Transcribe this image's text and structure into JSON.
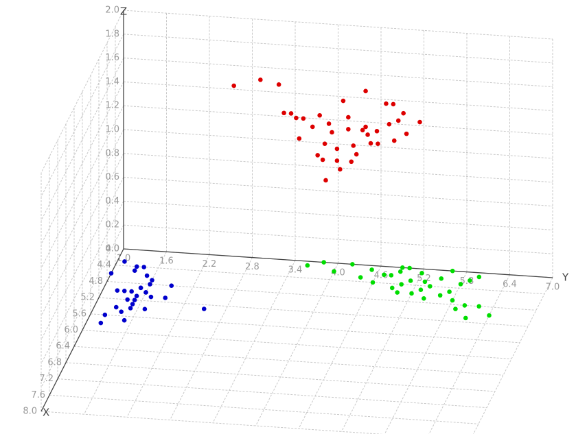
{
  "chart_data": {
    "type": "scatter3d",
    "x_label": "X",
    "y_label": "Y",
    "z_label": "Z",
    "xlim": [
      4.0,
      8.0
    ],
    "ylim": [
      1.0,
      7.0
    ],
    "zlim": [
      0.0,
      2.0
    ],
    "xticks": [
      {
        "value": 4.0,
        "label": "4.0"
      },
      4.4,
      4.8,
      5.2,
      5.6,
      {
        "value": 6.0,
        "label": "6.0"
      },
      6.4,
      6.8,
      7.2,
      7.6,
      {
        "value": 8.0,
        "label": "8.0"
      }
    ],
    "yticks": [
      {
        "value": 1.0,
        "label": "1.0"
      },
      1.6,
      2.2,
      2.8,
      3.4,
      {
        "value": 4.0,
        "label": "4.0"
      },
      4.6,
      5.2,
      5.8,
      6.4,
      {
        "value": 7.0,
        "label": "7.0"
      }
    ],
    "zticks": [
      {
        "value": 0.0,
        "label": "0.0"
      },
      0.2,
      0.4,
      0.6,
      0.8,
      {
        "value": 1.0,
        "label": "1.0"
      },
      1.2,
      1.4,
      1.6,
      1.8,
      {
        "value": 2.0,
        "label": "2.0"
      }
    ],
    "grid": true,
    "series": [
      {
        "color": "#0000cc",
        "x": [
          4.3,
          4.4,
          4.6,
          4.7,
          4.8,
          4.8,
          4.9,
          5.0,
          5.0,
          5.0,
          5.1,
          5.1,
          5.2,
          5.2,
          5.3,
          5.4,
          5.4,
          5.5,
          5.6,
          5.7,
          5.8,
          4.5,
          4.9,
          5.0,
          5.1,
          4.6,
          5.4,
          5.0,
          4.4,
          5.3
        ],
        "y": [
          1.1,
          1.4,
          1.0,
          1.6,
          1.9,
          1.6,
          1.5,
          1.3,
          1.6,
          1.4,
          1.5,
          1.7,
          1.4,
          1.5,
          1.5,
          1.7,
          1.3,
          1.4,
          1.2,
          1.5,
          1.2,
          1.3,
          1.5,
          1.2,
          1.9,
          1.5,
          1.5,
          1.6,
          1.3,
          2.5
        ],
        "z": [
          0,
          0,
          0,
          0,
          0,
          0,
          0,
          0,
          0,
          0,
          0,
          0,
          0,
          0,
          0,
          0,
          0,
          0,
          0,
          0,
          0,
          0,
          0,
          0,
          0,
          0,
          0,
          0,
          0,
          0
        ]
      },
      {
        "color": "#dd0000",
        "x": [
          4.2,
          4.3,
          4.1,
          4.4,
          4.2,
          4.3,
          4.5,
          4.2,
          4.1,
          4.3,
          4.4,
          4.2,
          4.6,
          4.3,
          4.2,
          4.4,
          4.5,
          4.1,
          4.3,
          4.2,
          4.4,
          4.3,
          4.5,
          4.2,
          4.6,
          4.3,
          4.4,
          4.2,
          4.1,
          4.5,
          4.3,
          4.2,
          4.4,
          4.3,
          4.2,
          4.5,
          4.1,
          4.3,
          4.4,
          4.2
        ],
        "y": [
          2.6,
          3.0,
          3.2,
          4.5,
          3.3,
          3.5,
          3.6,
          3.8,
          3.9,
          4.0,
          4.1,
          4.2,
          4.2,
          4.3,
          4.4,
          4.5,
          4.6,
          4.7,
          4.8,
          4.9,
          4.9,
          5.0,
          5.1,
          3.7,
          4.0,
          3.9,
          4.3,
          4.6,
          4.8,
          4.4,
          3.6,
          3.4,
          4.1,
          4.5,
          5.2,
          4.7,
          4.1,
          3.8,
          3.9,
          4.2
        ],
        "z": [
          1.5,
          1.6,
          1.5,
          1.6,
          1.3,
          1.3,
          1.2,
          1.3,
          1.2,
          1.2,
          1.1,
          1.3,
          1.0,
          1.1,
          1.2,
          1.3,
          1.2,
          1.4,
          1.3,
          1.3,
          1.2,
          1.4,
          1.3,
          1.2,
          0.9,
          1.1,
          1.0,
          1.2,
          1.4,
          1.1,
          1.3,
          1.3,
          1.0,
          1.2,
          1.3,
          1.2,
          1.4,
          1.0,
          1.0,
          1.2
        ]
      },
      {
        "color": "#00dd00",
        "x": [
          4.0,
          4.0,
          4.1,
          4.0,
          4.2,
          4.3,
          4.1,
          4.2,
          4.4,
          4.0,
          4.3,
          4.5,
          4.2,
          4.1,
          4.4,
          4.6,
          4.3,
          4.5,
          4.7,
          4.8,
          4.9,
          5.0,
          4.6,
          4.2,
          4.4,
          4.0,
          4.1,
          4.3,
          4.5,
          4.7,
          4.2,
          4.1,
          4.6,
          4.8,
          5.1
        ],
        "y": [
          3.8,
          4.2,
          4.5,
          5.0,
          4.8,
          4.4,
          5.2,
          5.5,
          5.0,
          5.6,
          5.8,
          5.3,
          4.0,
          3.6,
          4.6,
          5.6,
          5.1,
          4.9,
          5.4,
          6.2,
          5.9,
          6.4,
          5.0,
          4.7,
          5.4,
          4.9,
          4.9,
          5.3,
          5.7,
          5.8,
          5.9,
          6.0,
          5.2,
          6.0,
          6.1
        ],
        "z": [
          0,
          0,
          0,
          0,
          0,
          0,
          0,
          0,
          0,
          0,
          0,
          0,
          0,
          0,
          0,
          0,
          0,
          0,
          0,
          0,
          0,
          0,
          0,
          0,
          0,
          0,
          0,
          0,
          0,
          0,
          0,
          0,
          0,
          0,
          0
        ]
      }
    ]
  }
}
